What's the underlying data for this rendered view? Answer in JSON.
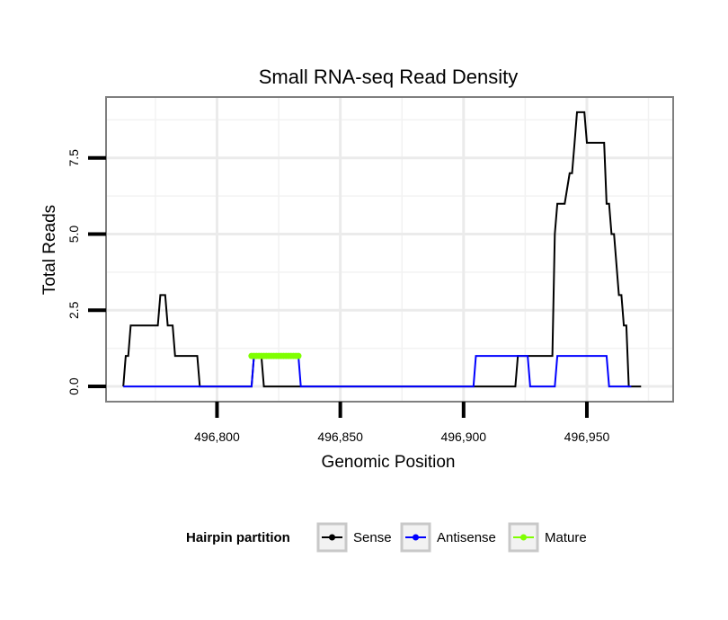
{
  "chart_data": {
    "type": "line",
    "title": "Small RNA-seq Read Density",
    "xlabel": "Genomic Position",
    "ylabel": "Total Reads",
    "xlim": [
      496755,
      496985
    ],
    "ylim": [
      -0.5,
      9.5
    ],
    "x_ticks": [
      496800,
      496850,
      496900,
      496950
    ],
    "x_tick_labels": [
      "496,800",
      "496,850",
      "496,900",
      "496,950"
    ],
    "y_ticks": [
      0,
      2.5,
      5,
      7.5
    ],
    "y_tick_labels": [
      "0.0",
      "2.5",
      "5.0",
      "7.5"
    ],
    "grid": true,
    "legend": {
      "title": "Hairpin partition",
      "position": "bottom",
      "entries": [
        "Sense",
        "Antisense",
        "Mature"
      ]
    },
    "series": [
      {
        "name": "Sense",
        "color": "#000000",
        "x": [
          496762,
          496763,
          496764,
          496765,
          496766,
          496776,
          496777,
          496779,
          496780,
          496782,
          496783,
          496792,
          496793,
          496795,
          496814,
          496815,
          496816,
          496818,
          496819,
          496921,
          496922,
          496924,
          496925,
          496936,
          496937,
          496938,
          496940,
          496941,
          496943,
          496944,
          496945,
          496946,
          496948,
          496949,
          496950,
          496952,
          496953,
          496956,
          496957,
          496958,
          496959,
          496960,
          496961,
          496963,
          496964,
          496965,
          496966,
          496967,
          496968,
          496970,
          496972
        ],
        "y": [
          0,
          1,
          1,
          2,
          2,
          2,
          3,
          3,
          2,
          2,
          1,
          1,
          0,
          0,
          0,
          1,
          1,
          1,
          0,
          0,
          1,
          1,
          1,
          1,
          5,
          6,
          6,
          6,
          7,
          7,
          8,
          9,
          9,
          9,
          8,
          8,
          8,
          8,
          8,
          6,
          6,
          5,
          5,
          3,
          3,
          2,
          2,
          0,
          0,
          0,
          0
        ]
      },
      {
        "name": "Antisense",
        "color": "#0000ff",
        "x": [
          496762,
          496814,
          496815,
          496833,
          496834,
          496904,
          496905,
          496923,
          496924,
          496926,
          496927,
          496937,
          496938,
          496958,
          496959,
          496968
        ],
        "y": [
          0,
          0,
          1,
          1,
          0,
          0,
          1,
          1,
          1,
          1,
          0,
          0,
          1,
          1,
          0,
          0
        ]
      },
      {
        "name": "Mature",
        "color": "#7fff00",
        "x": [
          496814,
          496815,
          496816,
          496817,
          496818,
          496819,
          496820,
          496821,
          496822,
          496823,
          496824,
          496825,
          496826,
          496827,
          496828,
          496829,
          496830,
          496831,
          496832,
          496833
        ],
        "y": [
          1,
          1,
          1,
          1,
          1,
          1,
          1,
          1,
          1,
          1,
          1,
          1,
          1,
          1,
          1,
          1,
          1,
          1,
          1,
          1
        ]
      }
    ]
  }
}
